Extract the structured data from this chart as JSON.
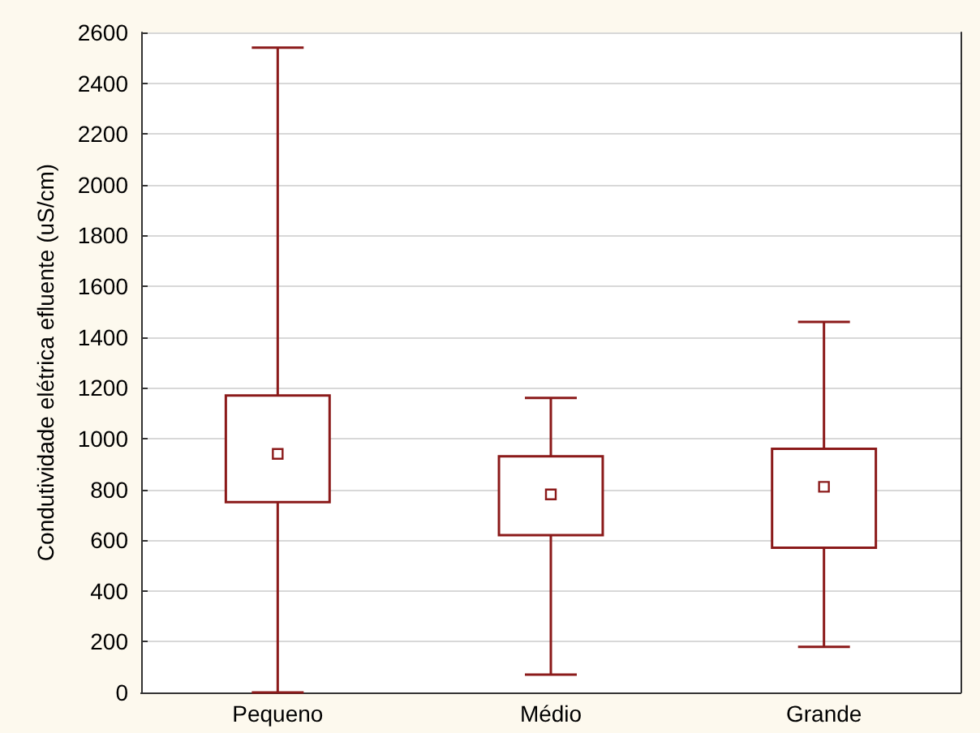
{
  "chart_data": {
    "type": "box",
    "ylabel": "Condutividade elétrica efluente (uS/cm)",
    "categories": [
      "Pequeno",
      "Médio",
      "Grande"
    ],
    "boxes": [
      {
        "low": 0,
        "q1": 750,
        "median": 940,
        "q3": 1170,
        "high": 2540
      },
      {
        "low": 70,
        "q1": 620,
        "median": 780,
        "q3": 930,
        "high": 1160
      },
      {
        "low": 180,
        "q1": 570,
        "median": 810,
        "q3": 960,
        "high": 1460
      }
    ],
    "color": "#8b1a1a",
    "marker": "square",
    "ylim": [
      0,
      2600
    ],
    "yticks": [
      0,
      200,
      400,
      600,
      800,
      1000,
      1200,
      1400,
      1600,
      1800,
      2000,
      2200,
      2400,
      2600
    ],
    "grid": "y"
  }
}
